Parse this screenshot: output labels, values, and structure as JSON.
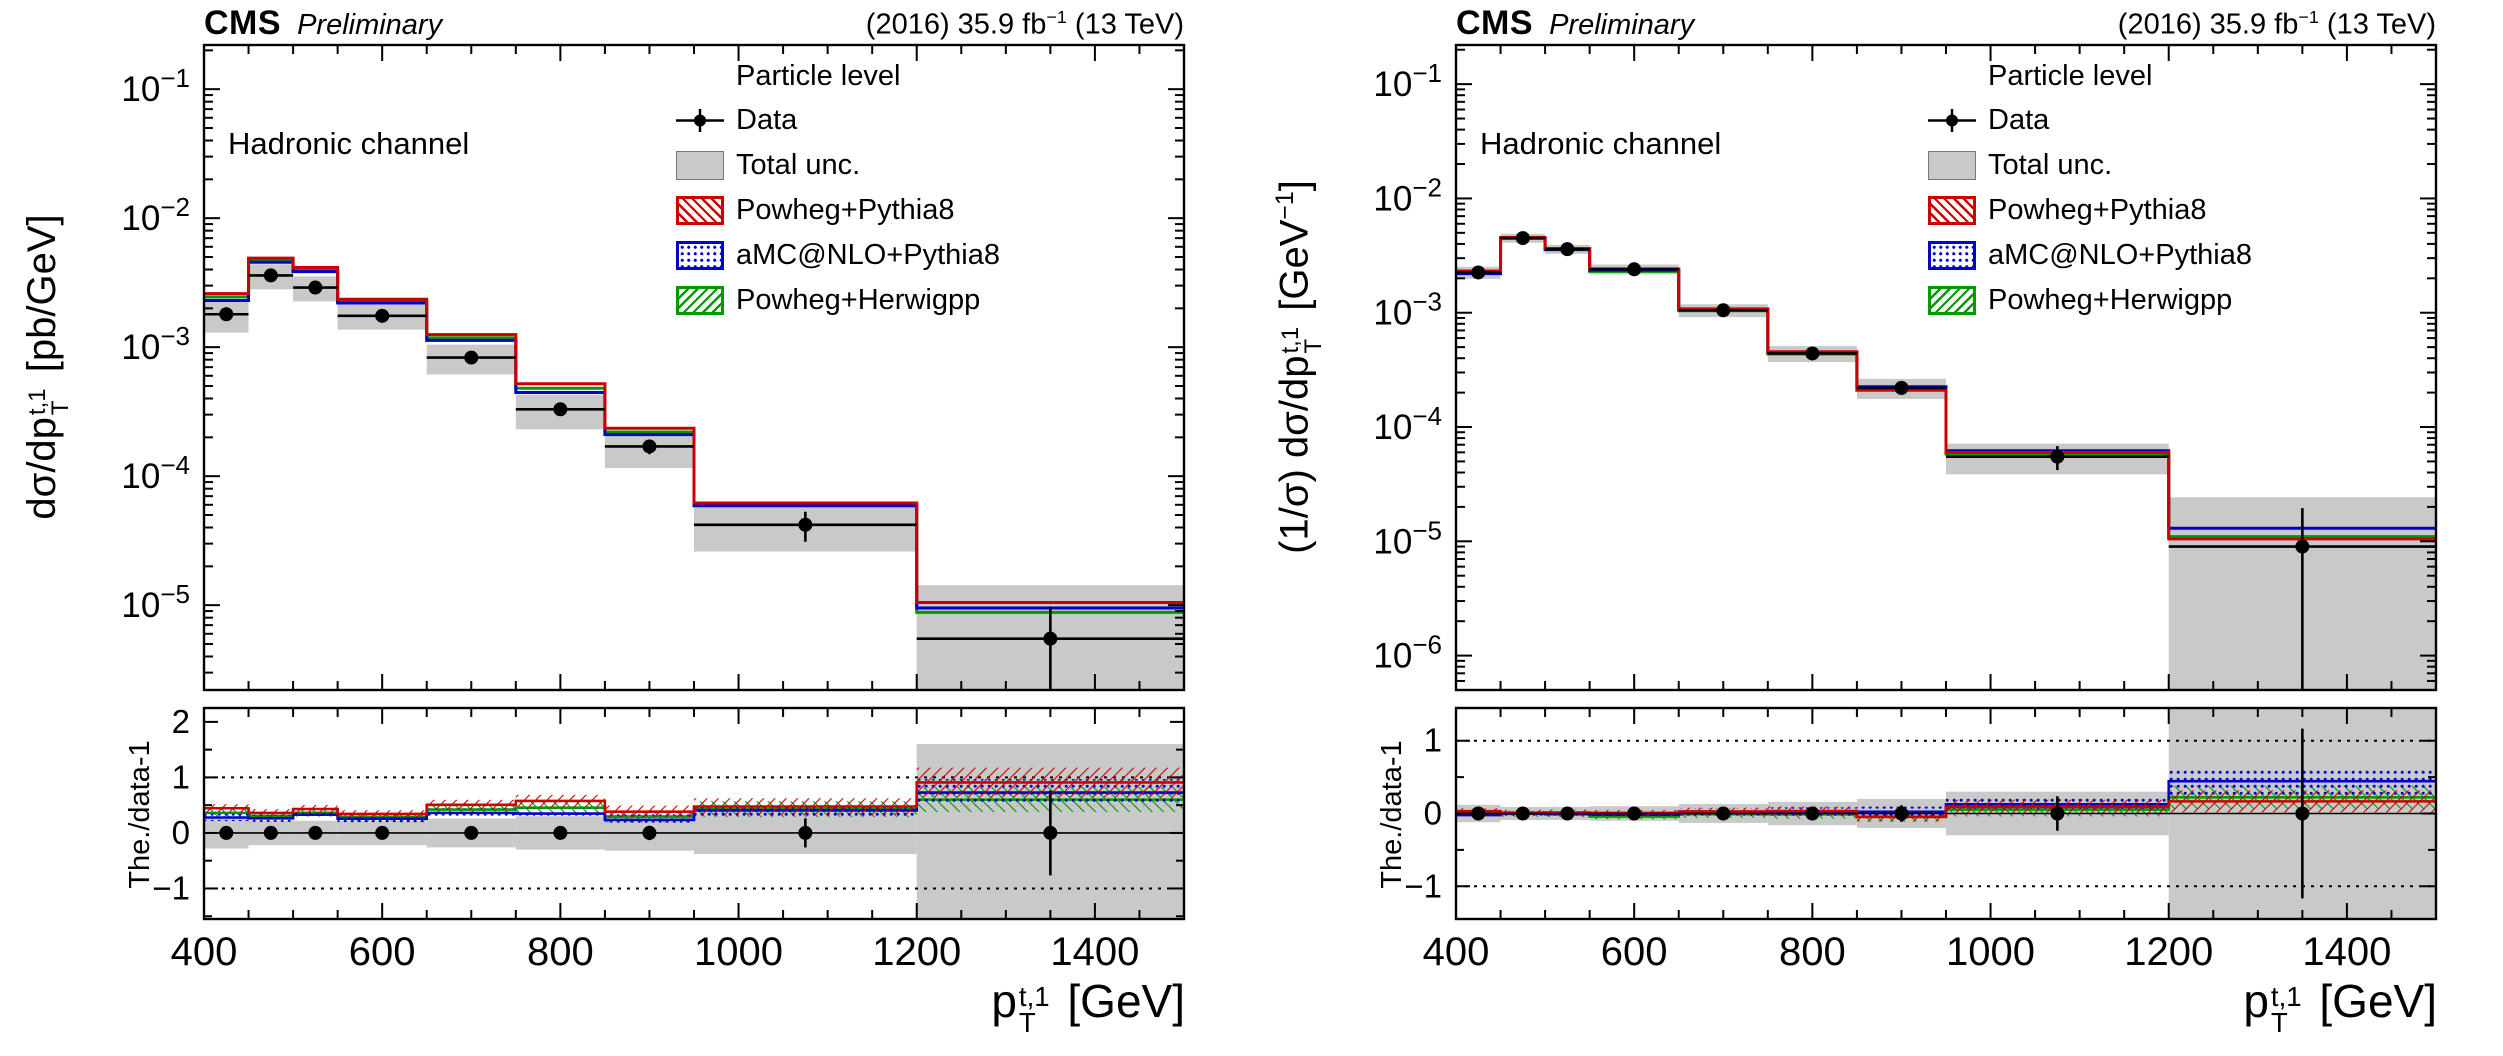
{
  "page": {
    "background": "#ffffff"
  },
  "header": {
    "cms": "CMS",
    "preliminary": "Preliminary",
    "lumi_html": "(2016) 35.9 fb<sup>−1</sup> (13 TeV)"
  },
  "channel_label": "Hadronic channel",
  "legend": {
    "title": "Particle level",
    "data_label": "Data",
    "unc_label": "Total unc."
  },
  "colors": {
    "data": "#000000",
    "band": "#c9c9c9",
    "frame": "#000000",
    "powheg_pythia8": "#cc0000",
    "amcatnlo_pythia8": "#0000cc",
    "powheg_herwigpp": "#009900"
  },
  "chart_data": [
    {
      "type": "bar",
      "title": "",
      "xlabel_html": "p<span class=\"stk\"><span>t,1</span><span>T</span></span> [GeV]",
      "ylabel_html": "dσ/dp<span class=\"stk\"><span>t,1</span><span>T</span></span> [pb/GeV]",
      "xlim": [
        400,
        1500
      ],
      "ylim": [
        2.2e-06,
        0.22
      ],
      "yscale": "log",
      "grid": false,
      "legend_position": "top-right-inside",
      "x_ticks_labeled": [
        400,
        600,
        800,
        1000,
        1200,
        1400
      ],
      "x_minor_step": 50,
      "bin_edges": [
        400,
        450,
        500,
        550,
        650,
        750,
        850,
        950,
        1200,
        1500
      ],
      "data": {
        "name": "Data",
        "y": [
          0.0018,
          0.0036,
          0.0029,
          0.00175,
          0.00083,
          0.00033,
          0.00017,
          4.2e-05,
          5.5e-06
        ],
        "yerr": [
          0.00015,
          0.00025,
          0.0002,
          0.00012,
          7e-05,
          3.5e-05,
          2.2e-05,
          1.1e-05,
          4.2e-06
        ]
      },
      "total_unc_rel": [
        0.28,
        0.22,
        0.22,
        0.22,
        0.26,
        0.3,
        0.32,
        0.38,
        1.6
      ],
      "mc_stat_rel": [
        0.05,
        0.05,
        0.05,
        0.05,
        0.06,
        0.07,
        0.08,
        0.1,
        0.14
      ],
      "series": [
        {
          "name": "Powheg+Pythia8",
          "color": "#cc0000",
          "pattern": "hatch45",
          "values": [
            0.0026,
            0.0049,
            0.00415,
            0.00235,
            0.00125,
            0.00052,
            0.000235,
            6.2e-05,
            1.05e-05
          ]
        },
        {
          "name": "aMC@NLO+Pythia8",
          "color": "#0000cc",
          "pattern": "dots",
          "values": [
            0.0023,
            0.00455,
            0.00385,
            0.0022,
            0.00113,
            0.000445,
            0.00021,
            5.9e-05,
            9.5e-06
          ]
        },
        {
          "name": "Powheg+Herwigpp",
          "color": "#009900",
          "pattern": "hatch135",
          "values": [
            0.00245,
            0.0047,
            0.00395,
            0.00225,
            0.00118,
            0.00048,
            0.00022,
            6e-05,
            8.8e-06
          ]
        }
      ],
      "ratio": {
        "ylabel": "The./data-1",
        "ylim": [
          -1.55,
          2.25
        ],
        "ticks": [
          -1,
          0,
          1,
          2
        ],
        "dotted": [
          -1,
          1
        ]
      }
    },
    {
      "type": "bar",
      "title": "",
      "xlabel_html": "p<span class=\"stk\"><span>t,1</span><span>T</span></span> [GeV]",
      "ylabel_html": "(1/σ) dσ/dp<span class=\"stk\"><span>t,1</span><span>T</span></span> [GeV<sup>−1</sup>]",
      "xlim": [
        400,
        1500
      ],
      "ylim": [
        5e-07,
        0.22
      ],
      "yscale": "log",
      "grid": false,
      "legend_position": "top-right-inside",
      "x_ticks_labeled": [
        400,
        600,
        800,
        1000,
        1200,
        1400
      ],
      "x_minor_step": 50,
      "bin_edges": [
        400,
        450,
        500,
        550,
        650,
        750,
        850,
        950,
        1200,
        1500
      ],
      "data": {
        "name": "Data",
        "y": [
          0.00225,
          0.0045,
          0.0036,
          0.0024,
          0.00105,
          0.00044,
          0.00022,
          5.5e-05,
          9e-06
        ],
        "yerr": [
          0.00016,
          0.00025,
          0.0002,
          0.00014,
          7.5e-05,
          4e-05,
          2.5e-05,
          1.3e-05,
          1.05e-05
        ]
      },
      "total_unc_rel": [
        0.12,
        0.09,
        0.09,
        0.1,
        0.13,
        0.16,
        0.2,
        0.3,
        1.7
      ],
      "mc_stat_rel": [
        0.04,
        0.04,
        0.04,
        0.04,
        0.05,
        0.06,
        0.07,
        0.09,
        0.13
      ],
      "series": [
        {
          "name": "Powheg+Pythia8",
          "color": "#cc0000",
          "pattern": "hatch45",
          "values": [
            0.00232,
            0.00455,
            0.00365,
            0.00242,
            0.00108,
            0.000455,
            0.00021,
            6e-05,
            1.05e-05
          ]
        },
        {
          "name": "aMC@NLO+Pythia8",
          "color": "#0000cc",
          "pattern": "dots",
          "values": [
            0.0022,
            0.0045,
            0.00358,
            0.00236,
            0.00107,
            0.00045,
            0.000225,
            6.2e-05,
            1.3e-05
          ]
        },
        {
          "name": "Powheg+Herwigpp",
          "color": "#009900",
          "pattern": "hatch135",
          "values": [
            0.00228,
            0.00448,
            0.00356,
            0.0023,
            0.00104,
            0.000435,
            0.00021,
            5.8e-05,
            1.1e-05
          ]
        }
      ],
      "ratio": {
        "ylabel": "The./data-1",
        "ylim": [
          -1.45,
          1.45
        ],
        "ticks": [
          -1,
          0,
          1
        ],
        "dotted": [
          -1,
          1
        ]
      }
    }
  ]
}
